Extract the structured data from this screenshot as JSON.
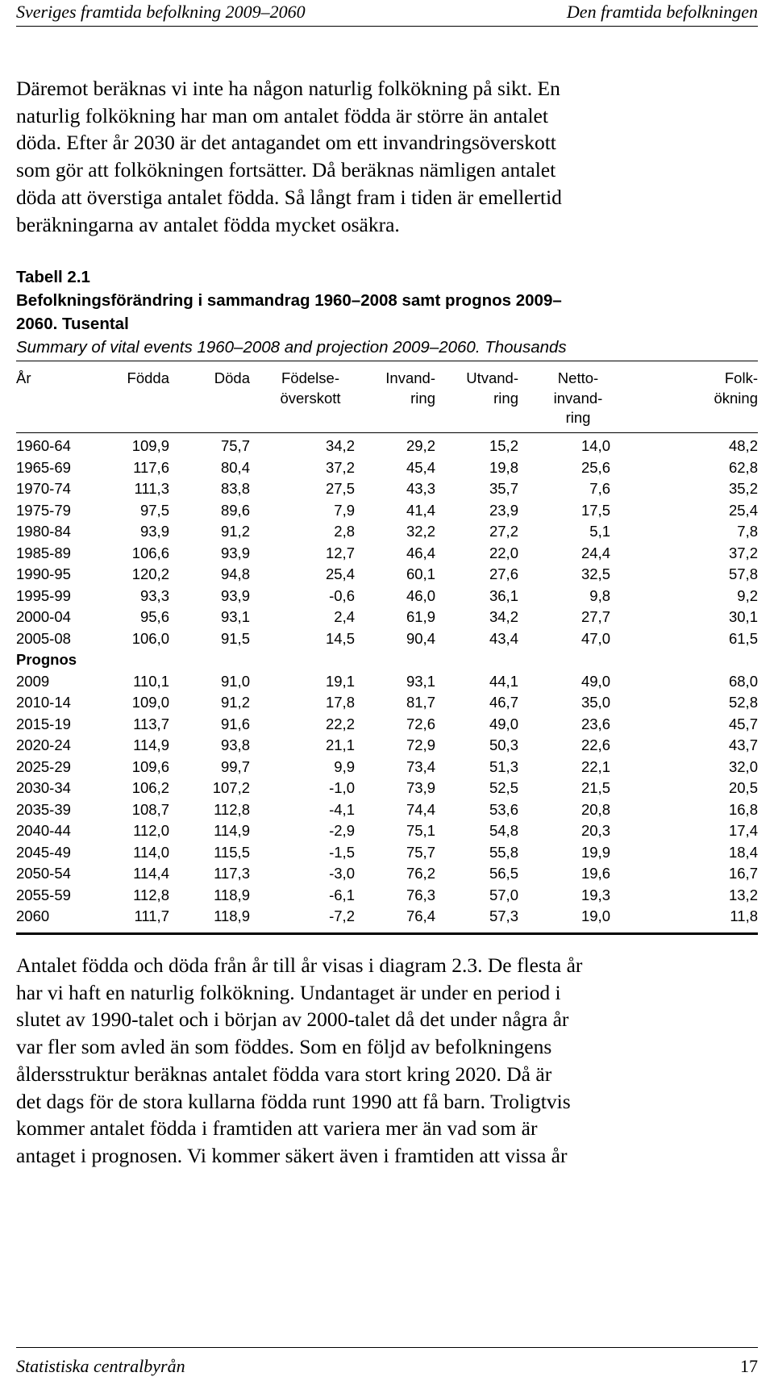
{
  "header": {
    "left": "Sveriges framtida befolkning 2009–2060",
    "right": "Den framtida befolkningen"
  },
  "paragraph1": [
    "Däremot beräknas vi inte ha någon naturlig folkökning på sikt. En",
    "naturlig folkökning har man om antalet födda är större än antalet",
    "döda. Efter år 2030 är det antagandet om ett invandringsöverskott",
    "som gör att folkökningen fortsätter. Då beräknas nämligen antalet",
    "döda att överstiga antalet födda. Så långt fram i tiden är emellertid",
    "beräkningarna av antalet födda mycket osäkra."
  ],
  "table_caption": {
    "label": "Tabell 2.1",
    "title_line1": "Befolkningsförändring i sammandrag 1960–2008 samt prognos 2009–",
    "title_line2": "2060. Tusental",
    "english": "Summary of vital events 1960–2008 and projection 2009–2060. Thousands"
  },
  "table": {
    "headers": [
      [
        "År"
      ],
      [
        "Födda"
      ],
      [
        "Döda"
      ],
      [
        "Födelse-",
        "överskott"
      ],
      [
        "Invand-",
        "ring"
      ],
      [
        "Utvand-",
        "ring"
      ],
      [
        "Netto-",
        "invand-",
        "ring"
      ],
      [
        "Folk-",
        "ökning"
      ]
    ],
    "section_prognos": "Prognos",
    "rows_historical": [
      [
        "1960-64",
        "109,9",
        "75,7",
        "34,2",
        "29,2",
        "15,2",
        "14,0",
        "48,2"
      ],
      [
        "1965-69",
        "117,6",
        "80,4",
        "37,2",
        "45,4",
        "19,8",
        "25,6",
        "62,8"
      ],
      [
        "1970-74",
        "111,3",
        "83,8",
        "27,5",
        "43,3",
        "35,7",
        "7,6",
        "35,2"
      ],
      [
        "1975-79",
        "97,5",
        "89,6",
        "7,9",
        "41,4",
        "23,9",
        "17,5",
        "25,4"
      ],
      [
        "1980-84",
        "93,9",
        "91,2",
        "2,8",
        "32,2",
        "27,2",
        "5,1",
        "7,8"
      ],
      [
        "1985-89",
        "106,6",
        "93,9",
        "12,7",
        "46,4",
        "22,0",
        "24,4",
        "37,2"
      ],
      [
        "1990-95",
        "120,2",
        "94,8",
        "25,4",
        "60,1",
        "27,6",
        "32,5",
        "57,8"
      ],
      [
        "1995-99",
        "93,3",
        "93,9",
        "-0,6",
        "46,0",
        "36,1",
        "9,8",
        "9,2"
      ],
      [
        "2000-04",
        "95,6",
        "93,1",
        "2,4",
        "61,9",
        "34,2",
        "27,7",
        "30,1"
      ],
      [
        "2005-08",
        "106,0",
        "91,5",
        "14,5",
        "90,4",
        "43,4",
        "47,0",
        "61,5"
      ]
    ],
    "rows_prognos": [
      [
        "2009",
        "110,1",
        "91,0",
        "19,1",
        "93,1",
        "44,1",
        "49,0",
        "68,0"
      ],
      [
        "2010-14",
        "109,0",
        "91,2",
        "17,8",
        "81,7",
        "46,7",
        "35,0",
        "52,8"
      ],
      [
        "2015-19",
        "113,7",
        "91,6",
        "22,2",
        "72,6",
        "49,0",
        "23,6",
        "45,7"
      ],
      [
        "2020-24",
        "114,9",
        "93,8",
        "21,1",
        "72,9",
        "50,3",
        "22,6",
        "43,7"
      ],
      [
        "2025-29",
        "109,6",
        "99,7",
        "9,9",
        "73,4",
        "51,3",
        "22,1",
        "32,0"
      ],
      [
        "2030-34",
        "106,2",
        "107,2",
        "-1,0",
        "73,9",
        "52,5",
        "21,5",
        "20,5"
      ],
      [
        "2035-39",
        "108,7",
        "112,8",
        "-4,1",
        "74,4",
        "53,6",
        "20,8",
        "16,8"
      ],
      [
        "2040-44",
        "112,0",
        "114,9",
        "-2,9",
        "75,1",
        "54,8",
        "20,3",
        "17,4"
      ],
      [
        "2045-49",
        "114,0",
        "115,5",
        "-1,5",
        "75,7",
        "55,8",
        "19,9",
        "18,4"
      ],
      [
        "2050-54",
        "114,4",
        "117,3",
        "-3,0",
        "76,2",
        "56,5",
        "19,6",
        "16,7"
      ],
      [
        "2055-59",
        "112,8",
        "118,9",
        "-6,1",
        "76,3",
        "57,0",
        "19,3",
        "13,2"
      ],
      [
        "2060",
        "111,7",
        "118,9",
        "-7,2",
        "76,4",
        "57,3",
        "19,0",
        "11,8"
      ]
    ]
  },
  "paragraph2": [
    "Antalet födda och döda från år till år visas i diagram 2.3. De flesta år",
    "har vi haft en naturlig folkökning. Undantaget är under en period i",
    "slutet av 1990-talet och i början av 2000-talet då det under några år",
    "var fler som avled än som föddes. Som en följd av befolkningens",
    "åldersstruktur beräknas antalet födda vara stort kring 2020. Då är",
    "det dags för de stora kullarna födda runt 1990 att få barn. Troligtvis",
    "kommer antalet födda i framtiden att variera mer än vad som är",
    "antaget i prognosen. Vi kommer säkert även i framtiden att vissa år"
  ],
  "footer": {
    "publisher": "Statistiska centralbyrån",
    "page_number": "17"
  }
}
